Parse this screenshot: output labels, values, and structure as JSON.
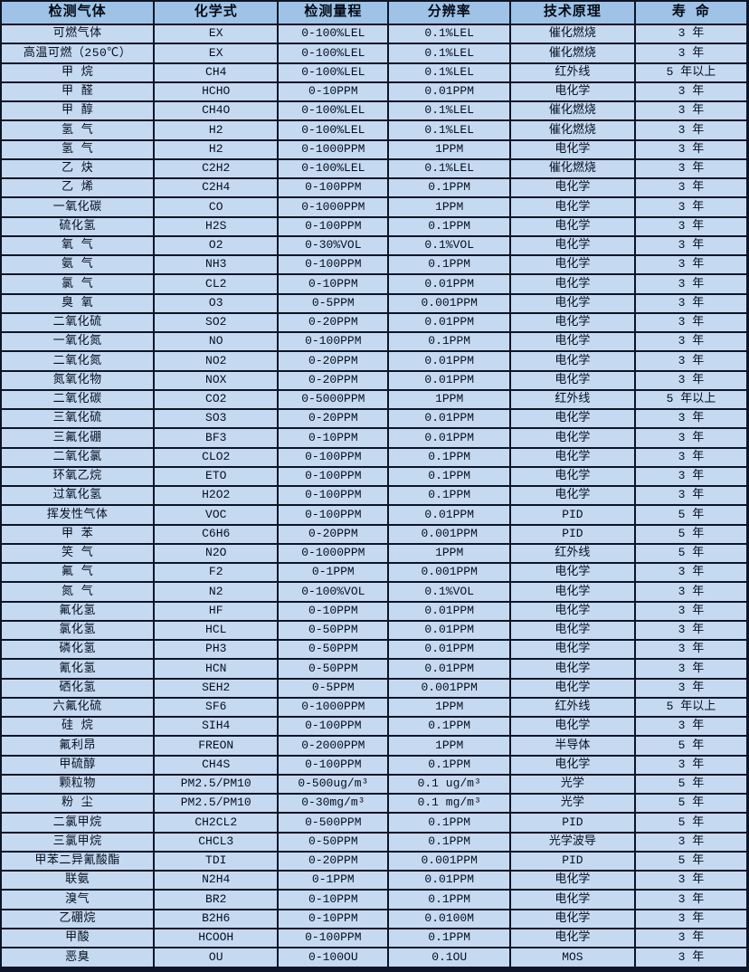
{
  "table": {
    "name": "gas-sensor-spec-table",
    "headers": [
      "检测气体",
      "化学式",
      "检测量程",
      "分辨率",
      "技术原理",
      "寿 命"
    ],
    "column_widths_pct": [
      20.5,
      16.6,
      14.8,
      16.3,
      16.7,
      15.1
    ],
    "rows": [
      [
        "可燃气体",
        "EX",
        "0-100%LEL",
        "0.1%LEL",
        "催化燃烧",
        "3 年"
      ],
      [
        "高温可燃（250℃）",
        "EX",
        "0-100%LEL",
        "0.1%LEL",
        "催化燃烧",
        "3 年"
      ],
      [
        "甲 烷",
        "CH4",
        "0-100%LEL",
        "0.1%LEL",
        "红外线",
        "5 年以上"
      ],
      [
        "甲 醛",
        "HCHO",
        "0-10PPM",
        "0.01PPM",
        "电化学",
        "3 年"
      ],
      [
        "甲 醇",
        "CH4O",
        "0-100%LEL",
        "0.1%LEL",
        "催化燃烧",
        "3 年"
      ],
      [
        "氢 气",
        "H2",
        "0-100%LEL",
        "0.1%LEL",
        "催化燃烧",
        "3 年"
      ],
      [
        "氢 气",
        "H2",
        "0-1000PPM",
        "1PPM",
        "电化学",
        "3 年"
      ],
      [
        "乙 炔",
        "C2H2",
        "0-100%LEL",
        "0.1%LEL",
        "催化燃烧",
        "3 年"
      ],
      [
        "乙 烯",
        "C2H4",
        "0-100PPM",
        "0.1PPM",
        "电化学",
        "3 年"
      ],
      [
        "一氧化碳",
        "CO",
        "0-1000PPM",
        "1PPM",
        "电化学",
        "3 年"
      ],
      [
        "硫化氢",
        "H2S",
        "0-100PPM",
        "0.1PPM",
        "电化学",
        "3 年"
      ],
      [
        "氧 气",
        "O2",
        "0-30%VOL",
        "0.1%VOL",
        "电化学",
        "3 年"
      ],
      [
        "氨 气",
        "NH3",
        "0-100PPM",
        "0.1PPM",
        "电化学",
        "3 年"
      ],
      [
        "氯 气",
        "CL2",
        "0-10PPM",
        "0.01PPM",
        "电化学",
        "3 年"
      ],
      [
        "臭 氧",
        "O3",
        "0-5PPM",
        "0.001PPM",
        "电化学",
        "3 年"
      ],
      [
        "二氧化硫",
        "SO2",
        "0-20PPM",
        "0.01PPM",
        "电化学",
        "3 年"
      ],
      [
        "一氧化氮",
        "NO",
        "0-100PPM",
        "0.1PPM",
        "电化学",
        "3 年"
      ],
      [
        "二氧化氮",
        "NO2",
        "0-20PPM",
        "0.01PPM",
        "电化学",
        "3 年"
      ],
      [
        "氮氧化物",
        "NOX",
        "0-20PPM",
        "0.01PPM",
        "电化学",
        "3 年"
      ],
      [
        "二氧化碳",
        "CO2",
        "0-5000PPM",
        "1PPM",
        "红外线",
        "5 年以上"
      ],
      [
        "三氧化硫",
        "SO3",
        "0-20PPM",
        "0.01PPM",
        "电化学",
        "3 年"
      ],
      [
        "三氟化硼",
        "BF3",
        "0-10PPM",
        "0.01PPM",
        "电化学",
        "3 年"
      ],
      [
        "二氧化氯",
        "CLO2",
        "0-100PPM",
        "0.1PPM",
        "电化学",
        "3 年"
      ],
      [
        "环氧乙烷",
        "ETO",
        "0-100PPM",
        "0.1PPM",
        "电化学",
        "3 年"
      ],
      [
        "过氧化氢",
        "H2O2",
        "0-100PPM",
        "0.1PPM",
        "电化学",
        "3 年"
      ],
      [
        "挥发性气体",
        "VOC",
        "0-100PPM",
        "0.01PPM",
        "PID",
        "5 年"
      ],
      [
        "甲 苯",
        "C6H6",
        "0-20PPM",
        "0.001PPM",
        "PID",
        "5 年"
      ],
      [
        "笑 气",
        "N2O",
        "0-1000PPM",
        "1PPM",
        "红外线",
        "5 年"
      ],
      [
        "氟 气",
        "F2",
        "0-1PPM",
        "0.001PPM",
        "电化学",
        "3 年"
      ],
      [
        "氮 气",
        "N2",
        "0-100%VOL",
        "0.1%VOL",
        "电化学",
        "3 年"
      ],
      [
        "氟化氢",
        "HF",
        "0-10PPM",
        "0.01PPM",
        "电化学",
        "3 年"
      ],
      [
        "氯化氢",
        "HCL",
        "0-50PPM",
        "0.01PPM",
        "电化学",
        "3 年"
      ],
      [
        "磷化氢",
        "PH3",
        "0-50PPM",
        "0.01PPM",
        "电化学",
        "3 年"
      ],
      [
        "氰化氢",
        "HCN",
        "0-50PPM",
        "0.01PPM",
        "电化学",
        "3 年"
      ],
      [
        "硒化氢",
        "SEH2",
        "0-5PPM",
        "0.001PPM",
        "电化学",
        "3 年"
      ],
      [
        "六氟化硫",
        "SF6",
        "0-1000PPM",
        "1PPM",
        "红外线",
        "5 年以上"
      ],
      [
        "硅 烷",
        "SIH4",
        "0-100PPM",
        "0.1PPM",
        "电化学",
        "3 年"
      ],
      [
        "氟利昂",
        "FREON",
        "0-2000PPM",
        "1PPM",
        "半导体",
        "5 年"
      ],
      [
        "甲硫醇",
        "CH4S",
        "0-100PPM",
        "0.1PPM",
        "电化学",
        "3 年"
      ],
      [
        "颗粒物",
        "PM2.5/PM10",
        "0-500ug/m³",
        "0.1 ug/m³",
        "光学",
        "5 年"
      ],
      [
        "粉 尘",
        "PM2.5/PM10",
        "0-30mg/m³",
        "0.1 mg/m³",
        "光学",
        "5 年"
      ],
      [
        "二氯甲烷",
        "CH2CL2",
        "0-500PPM",
        "0.1PPM",
        "PID",
        "5 年"
      ],
      [
        "三氯甲烷",
        "CHCL3",
        "0-50PPM",
        "0.1PPM",
        "光学波导",
        "3 年"
      ],
      [
        "甲苯二异氰酸酯",
        "TDI",
        "0-20PPM",
        "0.001PPM",
        "PID",
        "5 年"
      ],
      [
        "联氨",
        "N2H4",
        "0-1PPM",
        "0.01PPM",
        "电化学",
        "3 年"
      ],
      [
        "溴气",
        "BR2",
        "0-10PPM",
        "0.1PPM",
        "电化学",
        "3 年"
      ],
      [
        "乙硼烷",
        "B2H6",
        "0-10PPM",
        "0.0100M",
        "电化学",
        "3 年"
      ],
      [
        "甲酸",
        "HCOOH",
        "0-100PPM",
        "0.1PPM",
        "电化学",
        "3 年"
      ],
      [
        "恶臭",
        "OU",
        "0-100OU",
        "0.1OU",
        "MOS",
        "3 年"
      ]
    ]
  },
  "colors": {
    "header_bg": "#9ec3e7",
    "row_bg": "#c5d9f1",
    "border": "#0d1526",
    "text": "#06101f"
  }
}
